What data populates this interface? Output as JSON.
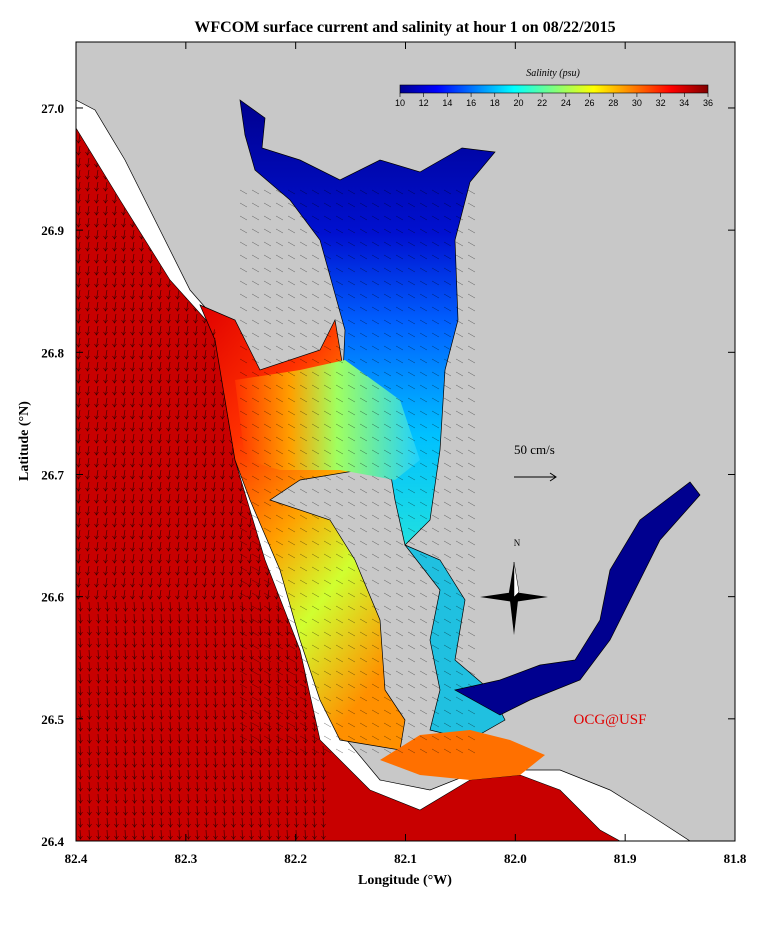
{
  "title": "WFCOM surface current and salinity at hour 1 on 08/22/2015",
  "x_axis": {
    "label": "Longitude (°W)",
    "lim": [
      82.4,
      81.8
    ],
    "ticks": [
      82.4,
      82.3,
      82.2,
      82.1,
      {
        "value": 82,
        "label": "82.0"
      },
      81.9,
      81.8
    ]
  },
  "y_axis": {
    "label": "Latitude (°N)",
    "lim": [
      26.4,
      27.054
    ],
    "ticks": [
      26.4,
      26.5,
      26.6,
      26.7,
      26.8,
      26.9,
      {
        "value": 27,
        "label": "27.0"
      }
    ]
  },
  "colorbar": {
    "label": "Salinity (psu)",
    "lim": [
      10,
      36
    ],
    "ticks": [
      10,
      12,
      14,
      16,
      18,
      20,
      22,
      24,
      26,
      28,
      30,
      32,
      34,
      36
    ]
  },
  "scale_label": "50 cm/s",
  "compass_label": "N",
  "credit": "OCG@USF"
}
